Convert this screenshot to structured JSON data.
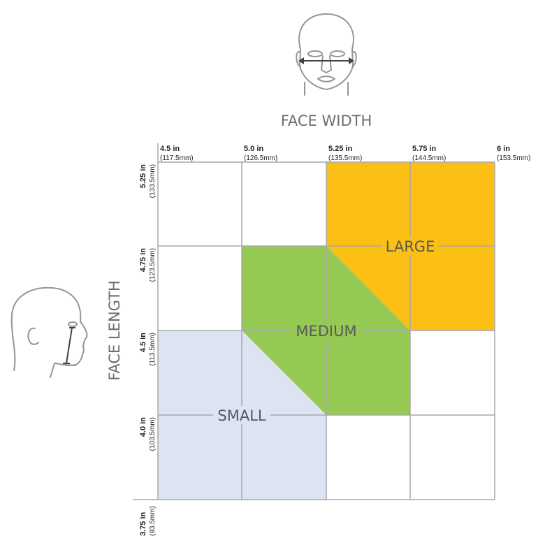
{
  "x_axis": {
    "title": "FACE WIDTH",
    "ticks": [
      {
        "main": "4.5 in",
        "sub": "(117.5mm)"
      },
      {
        "main": "5.0 in",
        "sub": "(126.5mm)"
      },
      {
        "main": "5.25 in",
        "sub": "(135.5mm)"
      },
      {
        "main": "5.75 in",
        "sub": "(144.5mm)"
      },
      {
        "main": "6 in",
        "sub": "(153.5mm)"
      }
    ]
  },
  "y_axis": {
    "title": "FACE  LENGTH",
    "ticks": [
      {
        "main": "5.25 in",
        "sub": "(133.5mm)"
      },
      {
        "main": "4.75 in",
        "sub": "(123.5mm)"
      },
      {
        "main": "4.5 in",
        "sub": "(113.5mm)"
      },
      {
        "main": "4.0 in",
        "sub": "(103.5mm)"
      },
      {
        "main": "3.75 in",
        "sub": "(93.5mm)"
      }
    ]
  },
  "regions": [
    {
      "label": "LARGE",
      "color": "#fbbf16"
    },
    {
      "label": "MEDIUM",
      "color": "#96c954"
    },
    {
      "label": "SMALL",
      "color": "#dce3f2"
    }
  ],
  "colors": {
    "grid": "#a7a9ac",
    "icon": "#939598",
    "arrow": "#414042"
  },
  "icons": [
    "front-face-icon",
    "side-face-icon"
  ]
}
